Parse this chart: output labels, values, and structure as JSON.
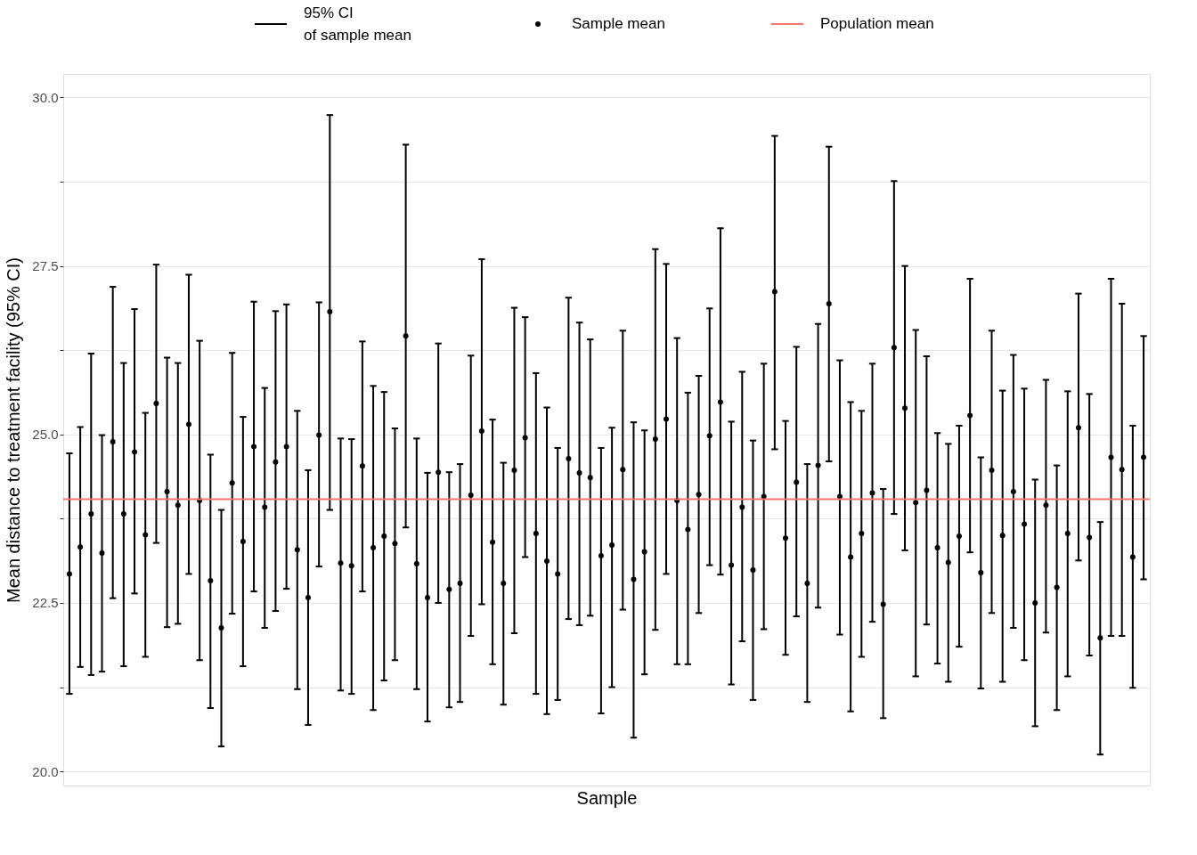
{
  "chart_data": {
    "type": "scatter",
    "xlabel": "Sample",
    "ylabel": "Mean distance to treatment facility (95% CI)",
    "categories": [
      null,
      null,
      null,
      null,
      null,
      null,
      null,
      null,
      null,
      null,
      null,
      null,
      null,
      null,
      null,
      null,
      null,
      null,
      null,
      null,
      null,
      null,
      null,
      null,
      null,
      null,
      null,
      null,
      null,
      null,
      null,
      null,
      null,
      null,
      null,
      null,
      null,
      null,
      null,
      null,
      null,
      null,
      null,
      null,
      null,
      null,
      null,
      null,
      null,
      null,
      null,
      null,
      null,
      null,
      null,
      null,
      null,
      null,
      null,
      null,
      null,
      null,
      null,
      null,
      null,
      null,
      null,
      null,
      null,
      null,
      null,
      null,
      null,
      null,
      null,
      null,
      null,
      null,
      null,
      null,
      null,
      null,
      null,
      null,
      null,
      null,
      null,
      null,
      null,
      null,
      null,
      null,
      null,
      null,
      null,
      null,
      null,
      null,
      null,
      null
    ],
    "series": [
      {
        "name": "Sample mean",
        "color": "#000000",
        "values": [
          22.93,
          23.33,
          23.82,
          23.24,
          24.89,
          23.82,
          24.74,
          23.51,
          25.46,
          24.15,
          23.95,
          25.15,
          24.02,
          22.83,
          22.13,
          24.28,
          23.41,
          24.82,
          23.92,
          24.59,
          24.82,
          23.29,
          22.58,
          24.99,
          26.82,
          23.09,
          23.05,
          24.53,
          23.32,
          23.49,
          23.38,
          26.46,
          23.08,
          22.58,
          24.44,
          22.7,
          22.79,
          24.1,
          25.05,
          23.4,
          22.79,
          24.47,
          24.95,
          23.53,
          23.12,
          22.93,
          24.64,
          24.43,
          24.36,
          23.2,
          23.36,
          24.48,
          22.85,
          23.26,
          24.93,
          25.23,
          24.02,
          23.59,
          24.11,
          24.98,
          25.48,
          23.06,
          23.92,
          22.99,
          24.08,
          27.12,
          23.46,
          24.29,
          22.79,
          24.54,
          26.94,
          24.08,
          23.18,
          23.53,
          24.13,
          22.48,
          26.29,
          25.39,
          23.99,
          24.17,
          23.32,
          23.1,
          23.49,
          25.28,
          22.95,
          24.47,
          23.5,
          24.15,
          23.67,
          22.5,
          23.95,
          22.73,
          23.53,
          25.1,
          23.47,
          21.98,
          24.66,
          24.48,
          23.18,
          24.66
        ],
        "errors": [
          [
            21.15,
            24.72
          ],
          [
            21.55,
            25.11
          ],
          [
            21.43,
            26.2
          ],
          [
            21.48,
            24.99
          ],
          [
            22.57,
            27.19
          ],
          [
            21.56,
            26.06
          ],
          [
            22.64,
            26.86
          ],
          [
            21.7,
            25.32
          ],
          [
            23.39,
            27.52
          ],
          [
            22.14,
            26.14
          ],
          [
            22.19,
            26.06
          ],
          [
            22.93,
            27.37
          ],
          [
            21.65,
            26.39
          ],
          [
            20.94,
            24.7
          ],
          [
            20.37,
            23.88
          ],
          [
            22.34,
            26.21
          ],
          [
            21.56,
            25.26
          ],
          [
            22.67,
            26.97
          ],
          [
            22.13,
            25.69
          ],
          [
            22.38,
            26.83
          ],
          [
            22.71,
            26.93
          ],
          [
            21.22,
            25.35
          ],
          [
            20.69,
            24.47
          ],
          [
            23.04,
            26.96
          ],
          [
            23.88,
            29.74
          ],
          [
            21.2,
            24.94
          ],
          [
            21.15,
            24.93
          ],
          [
            22.67,
            26.38
          ],
          [
            20.91,
            25.72
          ],
          [
            21.35,
            25.63
          ],
          [
            21.65,
            25.09
          ],
          [
            23.62,
            29.3
          ],
          [
            21.22,
            24.94
          ],
          [
            20.74,
            24.43
          ],
          [
            22.5,
            26.35
          ],
          [
            20.95,
            24.44
          ],
          [
            21.03,
            24.56
          ],
          [
            22.01,
            26.17
          ],
          [
            22.48,
            27.6
          ],
          [
            21.59,
            25.22
          ],
          [
            20.99,
            24.58
          ],
          [
            22.05,
            26.88
          ],
          [
            23.18,
            26.74
          ],
          [
            21.15,
            25.91
          ],
          [
            20.85,
            25.4
          ],
          [
            21.06,
            24.8
          ],
          [
            22.26,
            27.03
          ],
          [
            22.17,
            26.66
          ],
          [
            22.31,
            26.41
          ],
          [
            20.86,
            24.8
          ],
          [
            21.25,
            25.1
          ],
          [
            22.4,
            26.54
          ],
          [
            20.5,
            25.18
          ],
          [
            21.44,
            25.06
          ],
          [
            22.1,
            27.75
          ],
          [
            22.93,
            27.53
          ],
          [
            21.59,
            26.43
          ],
          [
            21.59,
            25.62
          ],
          [
            22.35,
            25.87
          ],
          [
            23.06,
            26.87
          ],
          [
            22.92,
            28.06
          ],
          [
            21.29,
            25.19
          ],
          [
            21.93,
            25.93
          ],
          [
            21.06,
            24.91
          ],
          [
            22.11,
            26.05
          ],
          [
            24.78,
            29.43
          ],
          [
            21.73,
            25.2
          ],
          [
            22.3,
            26.3
          ],
          [
            21.03,
            24.56
          ],
          [
            22.43,
            26.64
          ],
          [
            24.6,
            29.27
          ],
          [
            22.03,
            26.1
          ],
          [
            20.89,
            25.48
          ],
          [
            21.7,
            25.35
          ],
          [
            22.22,
            26.05
          ],
          [
            20.79,
            24.19
          ],
          [
            23.82,
            28.76
          ],
          [
            23.28,
            27.5
          ],
          [
            21.41,
            26.55
          ],
          [
            22.18,
            26.16
          ],
          [
            21.6,
            25.02
          ],
          [
            21.33,
            24.86
          ],
          [
            21.85,
            25.13
          ],
          [
            23.25,
            27.31
          ],
          [
            21.23,
            24.66
          ],
          [
            22.35,
            26.54
          ],
          [
            21.33,
            25.65
          ],
          [
            22.13,
            26.18
          ],
          [
            21.65,
            25.68
          ],
          [
            20.67,
            24.33
          ],
          [
            22.06,
            25.81
          ],
          [
            20.91,
            24.54
          ],
          [
            21.41,
            25.64
          ],
          [
            23.13,
            27.09
          ],
          [
            21.72,
            25.6
          ],
          [
            20.25,
            23.7
          ],
          [
            22.01,
            27.31
          ],
          [
            22.01,
            26.94
          ],
          [
            21.24,
            25.13
          ],
          [
            22.85,
            26.46
          ]
        ]
      }
    ],
    "ref_lines": [
      {
        "axis": "y",
        "value": 24.04,
        "label": "Population mean",
        "color": "#f8766d"
      }
    ],
    "annotations": [
      "95% CI\nof sample mean"
    ],
    "ylim": [
      19.79,
      30.35
    ],
    "yticks": [
      {
        "value": 20,
        "label": "20.0"
      },
      {
        "value": 21.25,
        "label": null
      },
      {
        "value": 22.5,
        "label": "22.5"
      },
      {
        "value": 23.75,
        "label": null
      },
      {
        "value": 25,
        "label": "25.0"
      },
      {
        "value": 26.25,
        "label": null
      },
      {
        "value": 27.5,
        "label": "27.5"
      },
      {
        "value": 28.75,
        "label": null
      },
      {
        "value": 30,
        "label": "30.0"
      }
    ],
    "grid": "y",
    "legend": "top",
    "marker": "circle",
    "tick_labels": "y"
  }
}
